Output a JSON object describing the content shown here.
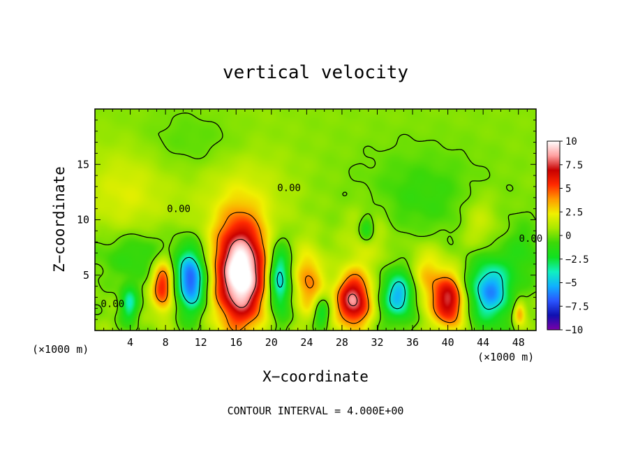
{
  "chart_data": {
    "type": "heatmap",
    "title": "vertical velocity",
    "xlabel": "X−coordinate",
    "ylabel": "Z−coordinate",
    "x_unit_left": "(×1000 m)",
    "x_unit_right": "(×1000 m)",
    "footer": "CONTOUR INTERVAL = 4.000E+00",
    "xlim": [
      0,
      50
    ],
    "ylim": [
      0,
      20
    ],
    "x_ticks": [
      4,
      8,
      12,
      16,
      20,
      24,
      28,
      32,
      36,
      40,
      44,
      48
    ],
    "x_tick_labels": [
      "4",
      "8",
      "12",
      "16",
      "20",
      "24",
      "28",
      "32",
      "36",
      "40",
      "44",
      "48"
    ],
    "y_ticks": [
      5,
      10,
      15
    ],
    "y_tick_labels": [
      "5",
      "10",
      "15"
    ],
    "colorbar": {
      "range": [
        -10,
        10
      ],
      "tick_values": [
        10,
        7.5,
        5,
        2.5,
        0,
        -2.5,
        -5,
        -7.5,
        -10
      ],
      "tick_labels": [
        "10",
        "7.5",
        "5",
        "2.5",
        "0",
        "−2.5",
        "−5",
        "−7.5",
        "−10"
      ]
    },
    "contour_labels": [
      {
        "text": "0.00",
        "x": 9.5,
        "y": 10.7
      },
      {
        "text": "0.00",
        "x": 22.0,
        "y": 12.6
      },
      {
        "text": "0.00",
        "x": 2.0,
        "y": 2.1
      },
      {
        "text": "0.00",
        "x": 49.4,
        "y": 8.0
      }
    ],
    "cells": [
      {
        "x": 16.5,
        "z": 5.0,
        "w": 10.5,
        "sx": 2.0,
        "sz": 3.3
      },
      {
        "x": 29.3,
        "z": 2.7,
        "w": 8.0,
        "sx": 1.4,
        "sz": 1.7
      },
      {
        "x": 40.2,
        "z": 2.6,
        "w": 6.8,
        "sx": 1.2,
        "sz": 1.7
      },
      {
        "x": 7.7,
        "z": 4.1,
        "w": 5.8,
        "sx": 0.9,
        "sz": 1.7
      },
      {
        "x": 10.9,
        "z": 4.5,
        "w": -7.5,
        "sx": 1.2,
        "sz": 2.0
      },
      {
        "x": 20.9,
        "z": 4.6,
        "w": -5.8,
        "sx": 0.9,
        "sz": 2.3
      },
      {
        "x": 34.5,
        "z": 3.2,
        "w": -5.8,
        "sx": 1.4,
        "sz": 1.6
      },
      {
        "x": 44.8,
        "z": 3.6,
        "w": -6.2,
        "sx": 1.7,
        "sz": 2.0
      },
      {
        "x": 3.9,
        "z": 2.4,
        "w": -4.0,
        "sx": 0.7,
        "sz": 1.2
      },
      {
        "x": 24.2,
        "z": 4.4,
        "w": 3.8,
        "sx": 1.2,
        "sz": 2.0
      },
      {
        "x": 25.7,
        "z": 1.6,
        "w": -3.4,
        "sx": 0.6,
        "sz": 0.9
      },
      {
        "x": 37.6,
        "z": 4.5,
        "w": 3.0,
        "sx": 1.5,
        "sz": 2.2
      },
      {
        "x": 30.8,
        "z": 9.1,
        "w": -3.0,
        "sx": 0.6,
        "sz": 0.8
      },
      {
        "x": 48.1,
        "z": 1.6,
        "w": 4.0,
        "sx": 0.5,
        "sz": 0.8
      },
      {
        "x": 16.5,
        "z": 11.5,
        "w": 1.4,
        "sx": 4.0,
        "sz": 5.0
      },
      {
        "x": 3.5,
        "z": 12.5,
        "w": 1.6,
        "sx": 3.5,
        "sz": 3.0
      },
      {
        "x": 31.0,
        "z": 8.3,
        "w": 1.5,
        "sx": 2.0,
        "sz": 2.3
      },
      {
        "x": 43.5,
        "z": 9.7,
        "w": 1.5,
        "sx": 1.5,
        "sz": 2.0
      },
      {
        "x": 5.0,
        "z": 6.8,
        "w": -1.8,
        "sx": 3.5,
        "sz": 1.6
      },
      {
        "x": 37.0,
        "z": 12.0,
        "w": -1.3,
        "sx": 5.0,
        "sz": 3.0
      },
      {
        "x": 12.5,
        "z": 17.0,
        "w": -1.0,
        "sx": 5.0,
        "sz": 2.0
      },
      {
        "x": 48.5,
        "z": 7.0,
        "w": -1.5,
        "sx": 1.5,
        "sz": 2.0
      }
    ],
    "contour_levels": [
      -8,
      -4,
      0,
      4,
      8
    ]
  },
  "colors": {
    "colorbar_stops": [
      "#7a00a8",
      "#1010b0",
      "#2a55ff",
      "#10b0ff",
      "#10f0c0",
      "#10e020",
      "#3cd808",
      "#a8e800",
      "#f0f000",
      "#ff9a00",
      "#ff2a00",
      "#c80000",
      "#ffa0a0",
      "#ffffff"
    ]
  }
}
